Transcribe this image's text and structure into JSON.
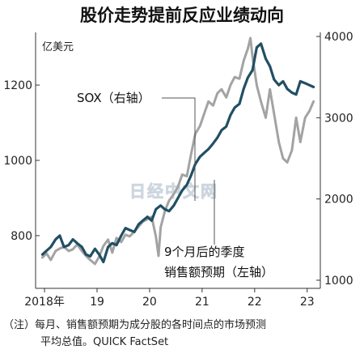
{
  "chart_data": {
    "type": "line",
    "title": "股价走势提前反应业绩动向",
    "left_axis": {
      "unit": "亿美元",
      "ticks": [
        800,
        1000,
        1200
      ],
      "ylim": [
        660,
        1340
      ]
    },
    "right_axis": {
      "ticks": [
        1000,
        2000,
        3000,
        4000
      ],
      "ylim": [
        900,
        4050
      ]
    },
    "x_axis": {
      "range": [
        2017.83,
        2023.25
      ],
      "ticks": [
        {
          "x": 2018.0,
          "label": "2018年"
        },
        {
          "x": 2019.0,
          "label": "19"
        },
        {
          "x": 2020.0,
          "label": "20"
        },
        {
          "x": 2021.0,
          "label": "21"
        },
        {
          "x": 2022.0,
          "label": "22"
        },
        {
          "x": 2023.0,
          "label": "23"
        }
      ]
    },
    "grid": false,
    "series": [
      {
        "name": "SOX（右轴）",
        "axis": "right",
        "color": "#a3a3a3",
        "x": [
          2017.96,
          2018.04,
          2018.12,
          2018.21,
          2018.29,
          2018.37,
          2018.46,
          2018.54,
          2018.62,
          2018.71,
          2018.79,
          2018.87,
          2018.96,
          2019.04,
          2019.12,
          2019.21,
          2019.29,
          2019.37,
          2019.46,
          2019.54,
          2019.62,
          2019.71,
          2019.79,
          2019.87,
          2019.96,
          2020.04,
          2020.12,
          2020.17,
          2020.21,
          2020.29,
          2020.37,
          2020.46,
          2020.54,
          2020.62,
          2020.71,
          2020.79,
          2020.87,
          2020.96,
          2021.04,
          2021.12,
          2021.21,
          2021.29,
          2021.37,
          2021.46,
          2021.54,
          2021.62,
          2021.71,
          2021.79,
          2021.87,
          2021.92,
          2021.96,
          2022.04,
          2022.12,
          2022.21,
          2022.29,
          2022.37,
          2022.46,
          2022.54,
          2022.62,
          2022.71,
          2022.79,
          2022.87,
          2022.96,
          2023.04,
          2023.12
        ],
        "values": [
          1280,
          1330,
          1250,
          1360,
          1390,
          1410,
          1360,
          1380,
          1440,
          1360,
          1300,
          1250,
          1200,
          1290,
          1420,
          1500,
          1340,
          1520,
          1470,
          1560,
          1540,
          1600,
          1660,
          1720,
          1750,
          1780,
          1540,
          1300,
          1650,
          1850,
          1980,
          2060,
          2150,
          2300,
          2280,
          2550,
          2800,
          2900,
          3050,
          3200,
          3150,
          3300,
          3350,
          3250,
          3400,
          3500,
          3480,
          3700,
          3850,
          3980,
          3750,
          3400,
          3200,
          3000,
          3350,
          3050,
          2700,
          2500,
          2450,
          2600,
          3000,
          2700,
          3000,
          3080,
          3200
        ]
      },
      {
        "name": "9个月后的季度销售额预期（左轴）",
        "axis": "left",
        "color": "#214f63",
        "x": [
          2017.96,
          2018.04,
          2018.12,
          2018.21,
          2018.29,
          2018.37,
          2018.46,
          2018.54,
          2018.62,
          2018.71,
          2018.79,
          2018.87,
          2018.96,
          2019.04,
          2019.12,
          2019.21,
          2019.29,
          2019.37,
          2019.46,
          2019.54,
          2019.62,
          2019.71,
          2019.79,
          2019.87,
          2019.96,
          2020.04,
          2020.12,
          2020.21,
          2020.29,
          2020.37,
          2020.46,
          2020.54,
          2020.62,
          2020.71,
          2020.79,
          2020.87,
          2020.96,
          2021.04,
          2021.12,
          2021.21,
          2021.29,
          2021.37,
          2021.46,
          2021.54,
          2021.62,
          2021.71,
          2021.79,
          2021.87,
          2021.96,
          2022.04,
          2022.12,
          2022.21,
          2022.29,
          2022.37,
          2022.46,
          2022.54,
          2022.62,
          2022.71,
          2022.79,
          2022.87,
          2022.96,
          2023.04,
          2023.12
        ],
        "values": [
          750,
          760,
          770,
          790,
          800,
          770,
          775,
          790,
          780,
          770,
          750,
          745,
          765,
          750,
          730,
          770,
          780,
          775,
          800,
          820,
          815,
          810,
          830,
          840,
          850,
          840,
          870,
          880,
          870,
          865,
          880,
          900,
          920,
          935,
          960,
          990,
          1010,
          1020,
          1030,
          1045,
          1060,
          1080,
          1090,
          1120,
          1140,
          1150,
          1190,
          1220,
          1240,
          1300,
          1310,
          1270,
          1250,
          1215,
          1200,
          1210,
          1190,
          1180,
          1175,
          1210,
          1205,
          1200,
          1195
        ]
      }
    ],
    "annotations": [
      {
        "text": "SOX（右轴）",
        "series": 0
      },
      {
        "text": "9个月后的季度",
        "series": 1
      },
      {
        "text": "销售额预期（左轴）",
        "series": 1
      }
    ]
  },
  "watermark": "日经中文网",
  "note": {
    "line1": "（注）每月、销售额预期为成分股的各时间点的市场预测",
    "line2": "平均总值。QUICK FactSet"
  }
}
